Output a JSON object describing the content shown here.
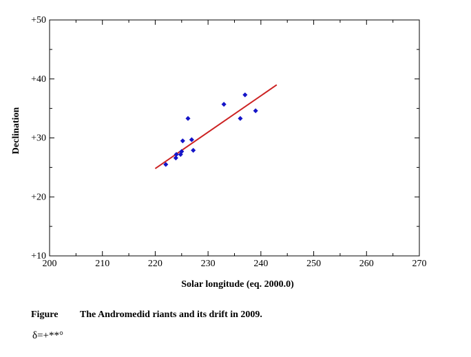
{
  "chart_data": {
    "type": "scatter",
    "title": "",
    "xlabel": "Solar longitude (eq. 2000.0)",
    "ylabel": "Declination",
    "xlim": [
      200,
      270
    ],
    "ylim": [
      10,
      50
    ],
    "xticks": [
      200,
      210,
      220,
      230,
      240,
      250,
      260,
      270
    ],
    "yticks": [
      10,
      20,
      30,
      40,
      50
    ],
    "xtick_labels": [
      "200",
      "210",
      "220",
      "230",
      "240",
      "250",
      "260",
      "270"
    ],
    "ytick_labels": [
      "+10",
      "+20",
      "+30",
      "+40",
      "+50"
    ],
    "grid": false,
    "series": [
      {
        "type": "scatter",
        "color": "#1515c8",
        "points": [
          [
            222.0,
            25.5
          ],
          [
            223.9,
            26.6
          ],
          [
            224.0,
            27.2
          ],
          [
            224.8,
            27.2
          ],
          [
            225.0,
            27.7
          ],
          [
            225.2,
            29.5
          ],
          [
            226.2,
            33.3
          ],
          [
            226.9,
            29.7
          ],
          [
            227.2,
            27.9
          ],
          [
            233.0,
            35.7
          ],
          [
            236.1,
            33.3
          ],
          [
            237.0,
            37.3
          ],
          [
            239.0,
            34.6
          ]
        ]
      },
      {
        "type": "line",
        "color": "#cc2222",
        "points": [
          [
            220.0,
            24.8
          ],
          [
            243.0,
            39.0
          ]
        ]
      }
    ]
  },
  "caption": {
    "label": "Figure",
    "text": "The Andromedid riants and its drift in 2009."
  },
  "formula": "δ=+**°"
}
